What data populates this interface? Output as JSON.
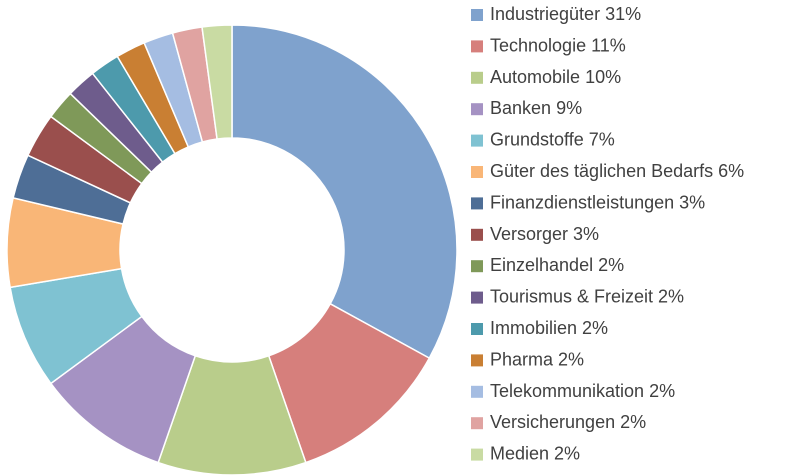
{
  "chart_data": {
    "type": "donut",
    "categories": [
      "Industriegüter",
      "Technologie",
      "Automobile",
      "Banken",
      "Grundstoffe",
      "Güter des täglichen Bedarfs",
      "Finanzdienstleistungen",
      "Versorger",
      "Einzelhandel",
      "Tourismus & Freizeit",
      "Immobilien",
      "Pharma",
      "Telekommunikation",
      "Versicherungen",
      "Medien"
    ],
    "values": [
      31,
      11,
      10,
      9,
      7,
      6,
      3,
      3,
      2,
      2,
      2,
      2,
      2,
      2,
      2
    ],
    "value_labels": [
      "31%",
      "11%",
      "10%",
      "9%",
      "7%",
      "6%",
      "3%",
      "3%",
      "2%",
      "2%",
      "2%",
      "2%",
      "2%",
      "2%",
      "2%"
    ],
    "colors": [
      "#7fa2cd",
      "#d67f7c",
      "#b9cd8b",
      "#a592c3",
      "#7fc2d2",
      "#f9b677",
      "#4e6e96",
      "#9a4f4d",
      "#7f9959",
      "#6e5c8c",
      "#4d9aac",
      "#c97f33",
      "#a5bde2",
      "#e0a3a1",
      "#c9dba3"
    ],
    "legend": "right"
  }
}
